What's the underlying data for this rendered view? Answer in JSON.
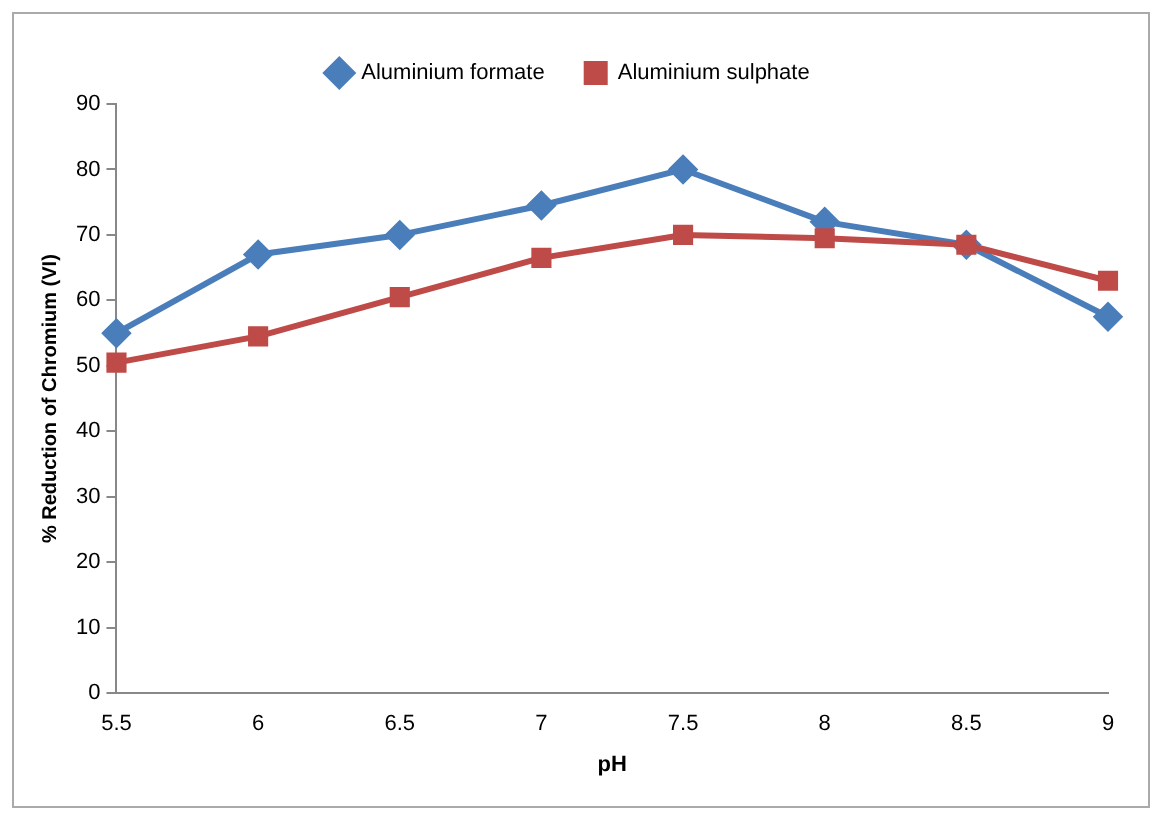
{
  "chart_data": {
    "type": "line",
    "xlabel": "pH",
    "ylabel": "% Reduction of Chromium (VI)",
    "categories": [
      "5.5",
      "6",
      "6.5",
      "7",
      "7.5",
      "8",
      "8.5",
      "9"
    ],
    "series": [
      {
        "name": "Aluminium formate",
        "color": "#4a7ebb",
        "marker": "diamond",
        "values": [
          55,
          67,
          70,
          74.5,
          80,
          72,
          68.5,
          57.5
        ]
      },
      {
        "name": "Aluminium sulphate",
        "color": "#be4b48",
        "marker": "square",
        "values": [
          50.5,
          54.5,
          60.5,
          66.5,
          70,
          69.5,
          68.5,
          63
        ]
      }
    ],
    "ylim": [
      0,
      90
    ],
    "yticks": [
      0,
      10,
      20,
      30,
      40,
      50,
      60,
      70,
      80,
      90
    ],
    "grid": false,
    "legend": "top",
    "line_style": "solid"
  }
}
